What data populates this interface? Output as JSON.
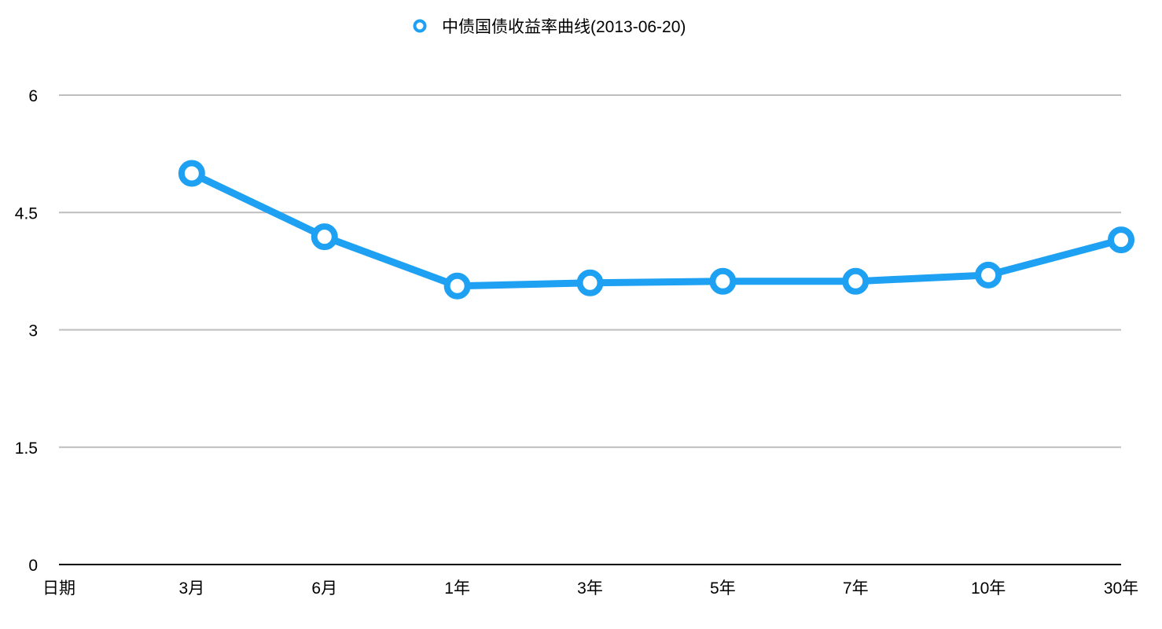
{
  "chart_data": {
    "type": "line",
    "x": [
      "日期",
      "3月",
      "6月",
      "1年",
      "3年",
      "5年",
      "7年",
      "10年",
      "30年"
    ],
    "series": [
      {
        "name": "中债国债收益率曲线(2013-06-20)",
        "values": [
          null,
          5.0,
          4.19,
          3.56,
          3.6,
          3.62,
          3.62,
          3.7,
          4.15
        ]
      }
    ],
    "ylim": [
      0,
      6
    ],
    "yticks": [
      0,
      1.5,
      3,
      4.5,
      6
    ],
    "ytick_labels": [
      "0",
      "1.5",
      "3",
      "4.5",
      "6"
    ],
    "grid": true,
    "legend_position": "top-center",
    "colors": {
      "series": "#1ea1f2",
      "grid": "#bdbdbd",
      "axis": "#000000"
    }
  }
}
